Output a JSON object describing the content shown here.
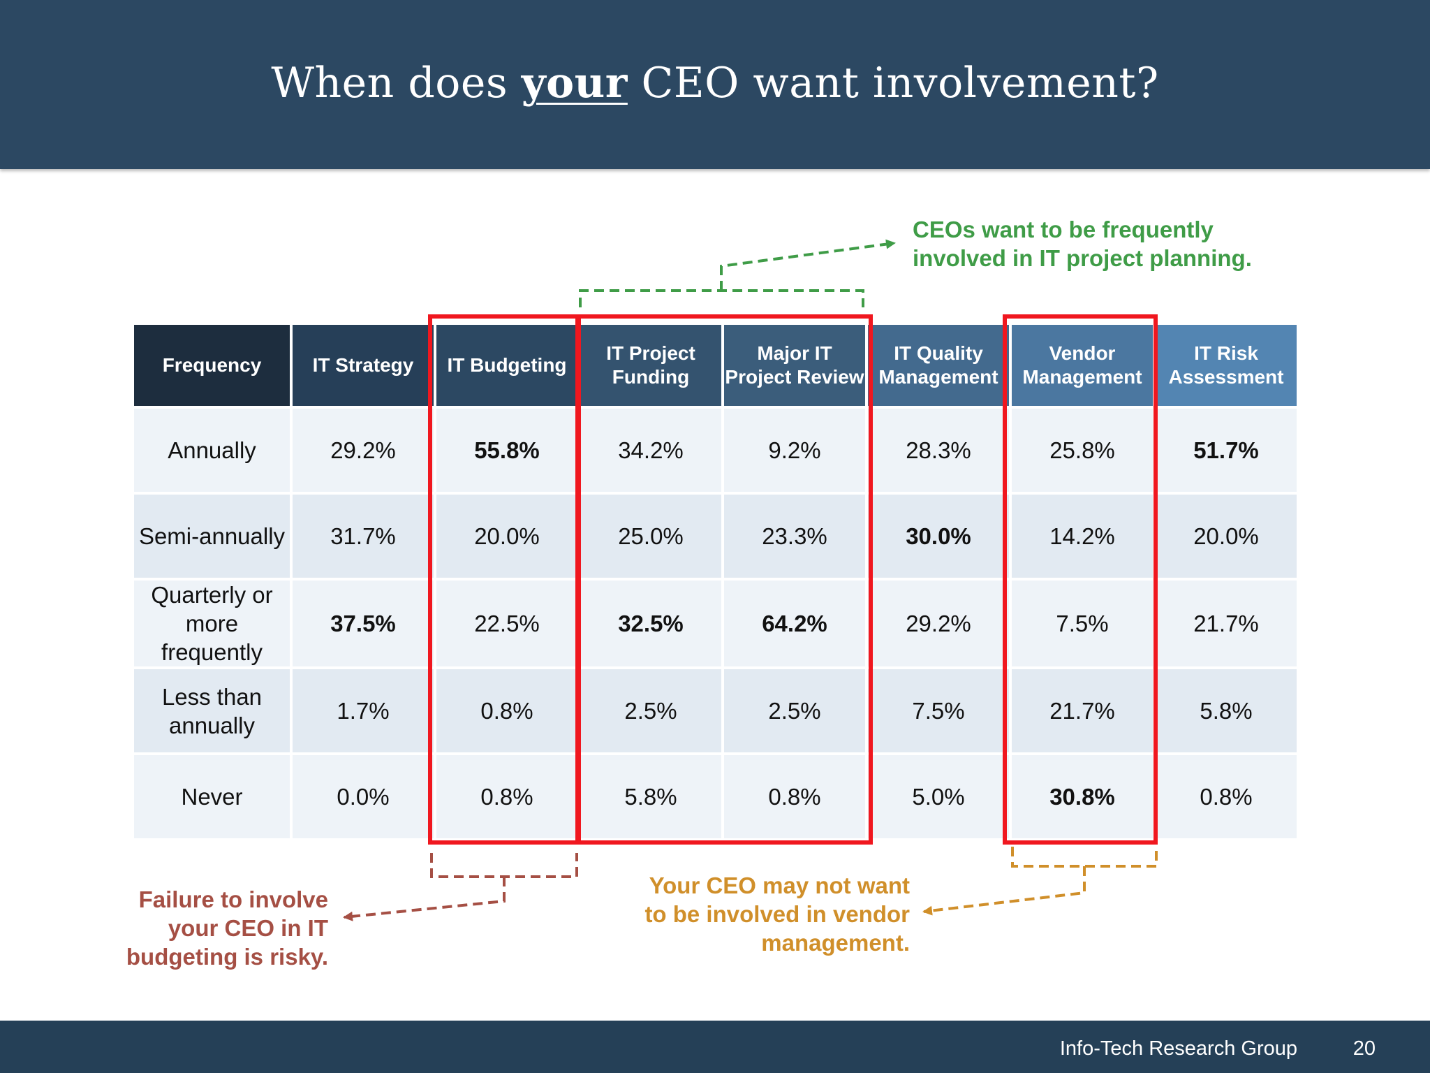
{
  "title": {
    "prefix": "When does ",
    "emphasis": "your",
    "suffix": "  CEO want involvement?"
  },
  "table": {
    "headers": [
      {
        "label": "Frequency",
        "bg": "#1d2d3e"
      },
      {
        "label": "IT Strategy",
        "bg": "#263f58"
      },
      {
        "label": "IT Budgeting",
        "bg": "#2c4862"
      },
      {
        "label": "IT Project Funding",
        "bg": "#34536f"
      },
      {
        "label": "Major IT Project Review",
        "bg": "#3b5d7b"
      },
      {
        "label": "IT Quality Management",
        "bg": "#436a8e"
      },
      {
        "label": "Vendor Management",
        "bg": "#4b77a0"
      },
      {
        "label": "IT Risk Assessment",
        "bg": "#5385b2"
      }
    ],
    "rows": [
      {
        "label": "Annually",
        "values": [
          "29.2%",
          "55.8%",
          "34.2%",
          "9.2%",
          "28.3%",
          "25.8%",
          "51.7%"
        ],
        "bold": [
          false,
          true,
          false,
          false,
          false,
          false,
          true
        ]
      },
      {
        "label": "Semi-annually",
        "values": [
          "31.7%",
          "20.0%",
          "25.0%",
          "23.3%",
          "30.0%",
          "14.2%",
          "20.0%"
        ],
        "bold": [
          false,
          false,
          false,
          false,
          true,
          false,
          false
        ]
      },
      {
        "label": "Quarterly or more frequently",
        "values": [
          "37.5%",
          "22.5%",
          "32.5%",
          "64.2%",
          "29.2%",
          "7.5%",
          "21.7%"
        ],
        "bold": [
          true,
          false,
          true,
          true,
          false,
          false,
          false
        ]
      },
      {
        "label": "Less than annually",
        "values": [
          "1.7%",
          "0.8%",
          "2.5%",
          "2.5%",
          "7.5%",
          "21.7%",
          "5.8%"
        ],
        "bold": [
          false,
          false,
          false,
          false,
          false,
          false,
          false
        ]
      },
      {
        "label": "Never",
        "values": [
          "0.0%",
          "0.8%",
          "5.8%",
          "0.8%",
          "5.0%",
          "30.8%",
          "0.8%"
        ],
        "bold": [
          false,
          false,
          false,
          false,
          false,
          true,
          false
        ]
      }
    ]
  },
  "annotations": {
    "top": {
      "text": "CEOs want to be frequently involved in IT project planning.",
      "color": "#3f9c47"
    },
    "left": {
      "text": "Failure to involve your CEO in IT budgeting is risky.",
      "color": "#a54f44"
    },
    "right": {
      "text": "Your CEO may not want to be involved in vendor management.",
      "color": "#d08f2a"
    }
  },
  "highlight_color": "#f0171f",
  "footer": {
    "org": "Info-Tech Research Group",
    "page": "20"
  }
}
